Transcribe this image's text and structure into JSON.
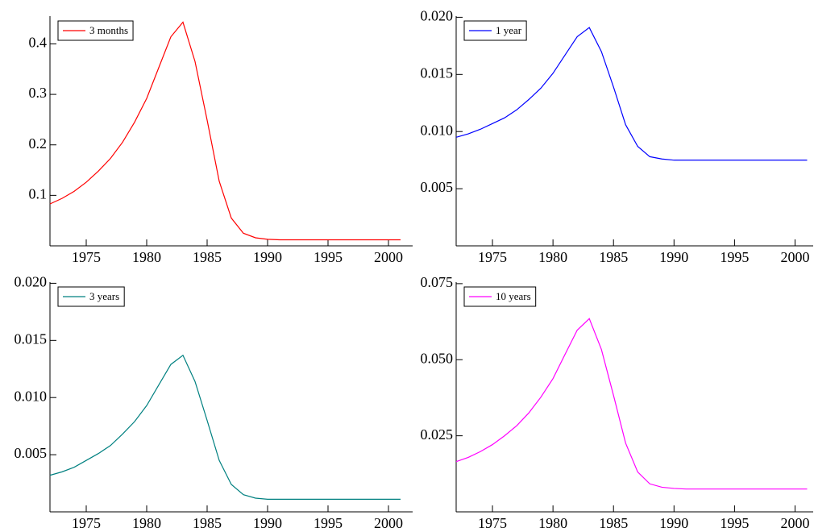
{
  "chart_data": [
    {
      "type": "line",
      "x": [
        1972,
        1973,
        1974,
        1975,
        1976,
        1977,
        1978,
        1979,
        1980,
        1981,
        1982,
        1983,
        1984,
        1985,
        1986,
        1987,
        1988,
        1989,
        1990,
        1991,
        1992,
        1993,
        1994,
        1995,
        1996,
        1997,
        1998,
        1999,
        2000,
        2001
      ],
      "series": [
        {
          "name": "3 months",
          "color": "#ff0000",
          "values": [
            0.083,
            0.094,
            0.108,
            0.126,
            0.148,
            0.173,
            0.205,
            0.245,
            0.292,
            0.353,
            0.414,
            0.443,
            0.365,
            0.249,
            0.128,
            0.055,
            0.025,
            0.016,
            0.013,
            0.012,
            0.012,
            0.012,
            0.012,
            0.012,
            0.012,
            0.012,
            0.012,
            0.012,
            0.012,
            0.012
          ]
        }
      ],
      "xlim": [
        1972,
        2002
      ],
      "ylim": [
        0,
        0.455
      ],
      "xticks": [
        1975,
        1980,
        1985,
        1990,
        1995,
        2000
      ],
      "yticks": [
        0.1,
        0.2,
        0.3,
        0.4
      ],
      "legend": "upper left"
    },
    {
      "type": "line",
      "x": [
        1972,
        1973,
        1974,
        1975,
        1976,
        1977,
        1978,
        1979,
        1980,
        1981,
        1982,
        1983,
        1984,
        1985,
        1986,
        1987,
        1988,
        1989,
        1990,
        1991,
        1992,
        1993,
        1994,
        1995,
        1996,
        1997,
        1998,
        1999,
        2000,
        2001
      ],
      "series": [
        {
          "name": "1 year",
          "color": "#0000ff",
          "values": [
            0.0095,
            0.0098,
            0.0102,
            0.0107,
            0.0112,
            0.0119,
            0.0128,
            0.0138,
            0.0151,
            0.0167,
            0.0183,
            0.0191,
            0.017,
            0.0139,
            0.0106,
            0.0087,
            0.0078,
            0.0076,
            0.0075,
            0.0075,
            0.0075,
            0.0075,
            0.0075,
            0.0075,
            0.0075,
            0.0075,
            0.0075,
            0.0075,
            0.0075,
            0.0075
          ]
        }
      ],
      "xlim": [
        1972,
        2001.5
      ],
      "ylim": [
        0,
        0.0201
      ],
      "xticks": [
        1975,
        1980,
        1985,
        1990,
        1995,
        2000
      ],
      "yticks": [
        0.005,
        {
          "value": 0.01,
          "label": "0.010"
        },
        0.015,
        {
          "value": 0.02,
          "label": "0.020"
        }
      ],
      "legend": "upper left"
    },
    {
      "type": "line",
      "x": [
        1972,
        1973,
        1974,
        1975,
        1976,
        1977,
        1978,
        1979,
        1980,
        1981,
        1982,
        1983,
        1984,
        1985,
        1986,
        1987,
        1988,
        1989,
        1990,
        1991,
        1992,
        1993,
        1994,
        1995,
        1996,
        1997,
        1998,
        1999,
        2000,
        2001
      ],
      "series": [
        {
          "name": "3 years",
          "color": "#008080",
          "values": [
            0.0032,
            0.0035,
            0.0039,
            0.0045,
            0.0051,
            0.0058,
            0.0068,
            0.0079,
            0.0093,
            0.0111,
            0.0129,
            0.0137,
            0.0114,
            0.008,
            0.0045,
            0.0024,
            0.0015,
            0.0012,
            0.0011,
            0.0011,
            0.0011,
            0.0011,
            0.0011,
            0.0011,
            0.0011,
            0.0011,
            0.0011,
            0.0011,
            0.0011,
            0.0011
          ]
        }
      ],
      "xlim": [
        1972,
        2002
      ],
      "ylim": [
        0,
        0.0201
      ],
      "xticks": [
        1975,
        1980,
        1985,
        1990,
        1995,
        2000
      ],
      "yticks": [
        0.005,
        {
          "value": 0.01,
          "label": "0.010"
        },
        0.015,
        {
          "value": 0.02,
          "label": "0.020"
        }
      ],
      "legend": "upper left"
    },
    {
      "type": "line",
      "x": [
        1972,
        1973,
        1974,
        1975,
        1976,
        1977,
        1978,
        1979,
        1980,
        1981,
        1982,
        1983,
        1984,
        1985,
        1986,
        1987,
        1988,
        1989,
        1990,
        1991,
        1992,
        1993,
        1994,
        1995,
        1996,
        1997,
        1998,
        1999,
        2000,
        2001
      ],
      "series": [
        {
          "name": "10 years",
          "color": "#ff00ff",
          "values": [
            0.0165,
            0.0179,
            0.0198,
            0.0221,
            0.025,
            0.0283,
            0.0325,
            0.0377,
            0.0438,
            0.0518,
            0.0597,
            0.0635,
            0.0534,
            0.0383,
            0.0226,
            0.0131,
            0.0092,
            0.0081,
            0.0077,
            0.0075,
            0.0075,
            0.0075,
            0.0075,
            0.0075,
            0.0075,
            0.0075,
            0.0075,
            0.0075,
            0.0075,
            0.0075
          ]
        }
      ],
      "xlim": [
        1972,
        2001.5
      ],
      "ylim": [
        0,
        0.0755
      ],
      "xticks": [
        1975,
        1980,
        1985,
        1990,
        1995,
        2000
      ],
      "yticks": [
        0.025,
        {
          "value": 0.05,
          "label": "0.050"
        },
        0.075
      ],
      "legend": "upper left"
    }
  ]
}
